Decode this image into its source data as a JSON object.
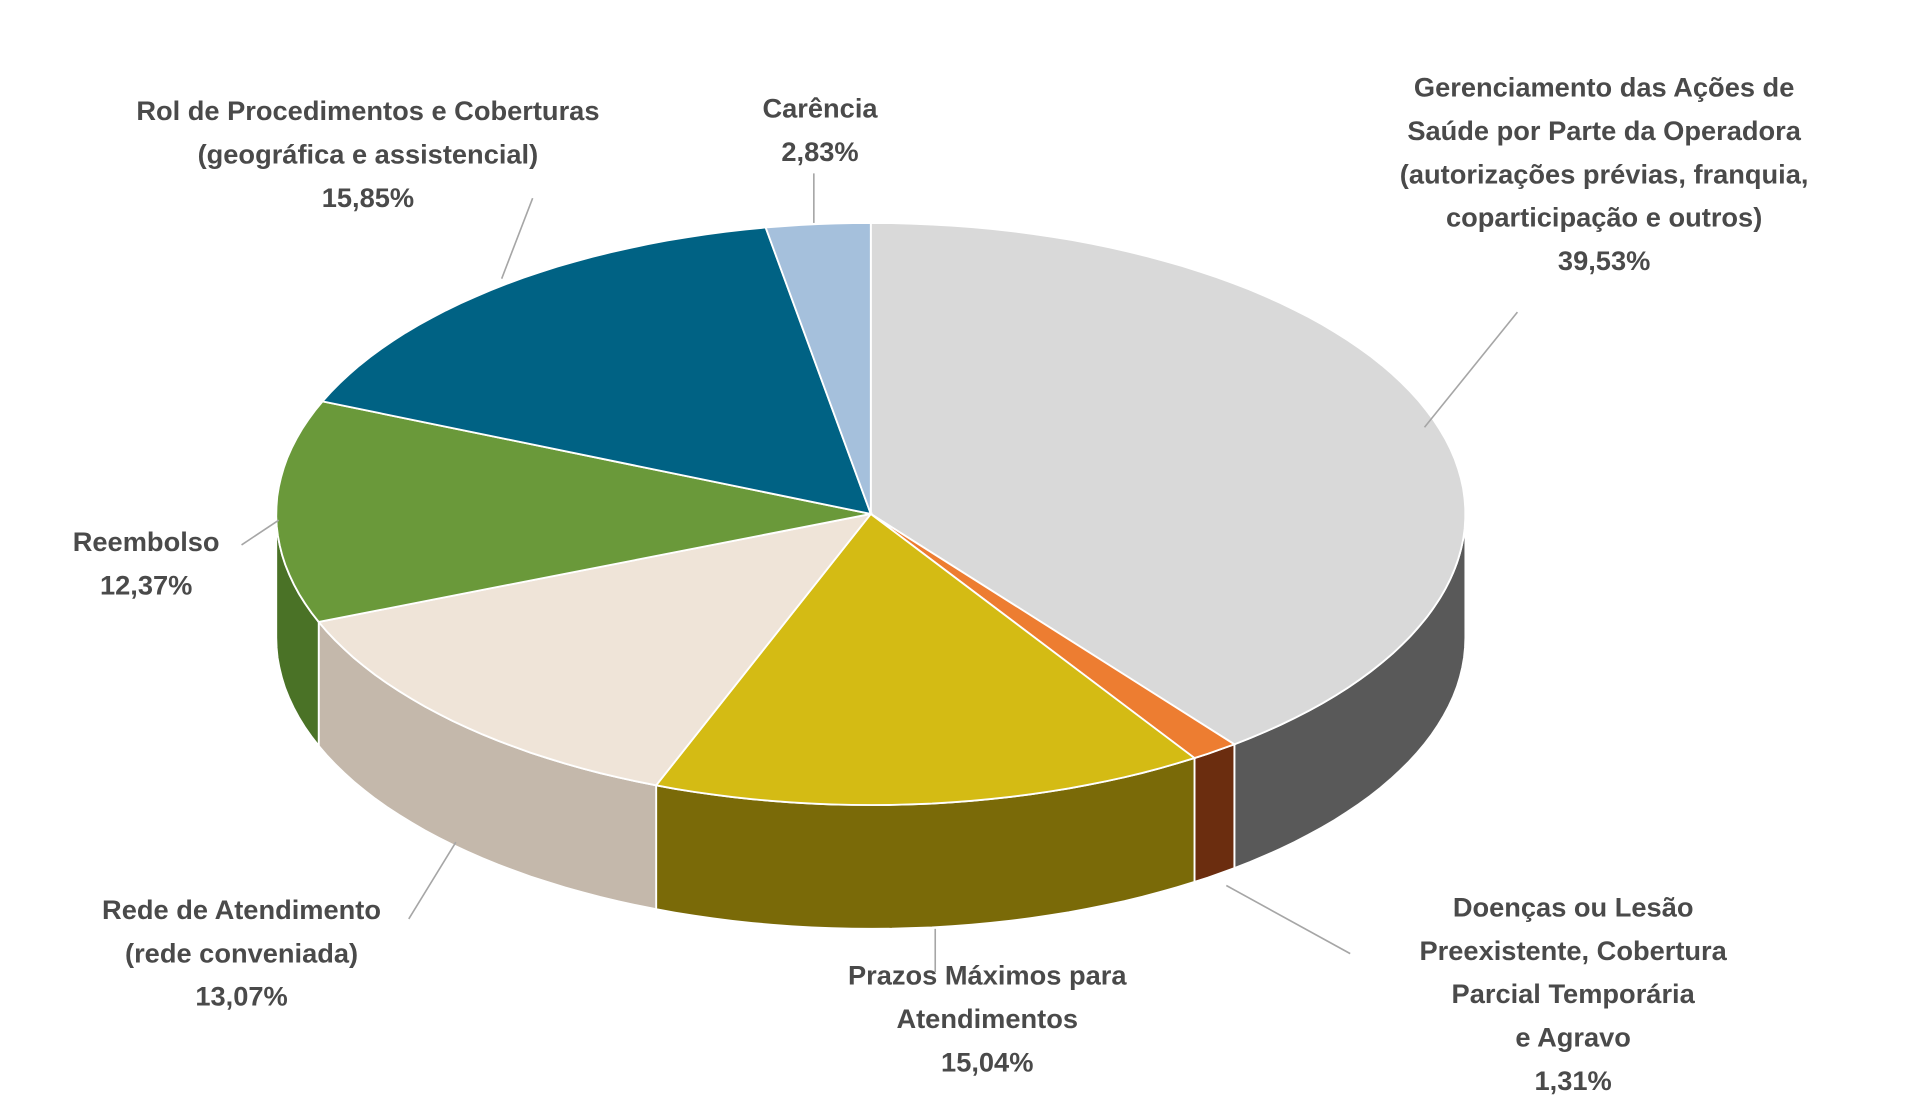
{
  "chart_data": {
    "type": "pie",
    "variant": "3d",
    "start": "top",
    "direction": "clockwise",
    "slices": [
      {
        "label": [
          "Gerenciamento das Ações de",
          "Saúde por Parte da Operadora",
          "(autorizações prévias, franquia,",
          "coparticipação e outros)"
        ],
        "value": 39.53,
        "display": "39,53%",
        "color": "#d9d9d9",
        "side": "#595959"
      },
      {
        "label": [
          "Doenças ou Lesão",
          "Preexistente, Cobertura",
          "Parcial Temporária",
          "e Agravo"
        ],
        "value": 1.31,
        "display": "1,31%",
        "color": "#ed7d31",
        "side": "#6b2d0f"
      },
      {
        "label": [
          "Prazos Máximos para",
          "Atendimentos"
        ],
        "value": 15.04,
        "display": "15,04%",
        "color": "#d4bb14",
        "side": "#7a6a08"
      },
      {
        "label": [
          "Rede de Atendimento",
          "(rede conveniada)"
        ],
        "value": 13.07,
        "display": "13,07%",
        "color": "#efe4d8",
        "side": "#c4b8ab"
      },
      {
        "label": [
          "Reembolso"
        ],
        "value": 12.37,
        "display": "12,37%",
        "color": "#6a993a",
        "side": "#4a7226"
      },
      {
        "label": [
          "Rol de Procedimentos e Coberturas",
          "(geográfica e assistencial)"
        ],
        "value": 15.85,
        "display": "15,85%",
        "color": "#006284",
        "side": "#004560"
      },
      {
        "label": [
          "Carência"
        ],
        "value": 2.83,
        "display": "2,83%",
        "color": "#a5c0dc",
        "side": "#7890a8"
      }
    ]
  }
}
